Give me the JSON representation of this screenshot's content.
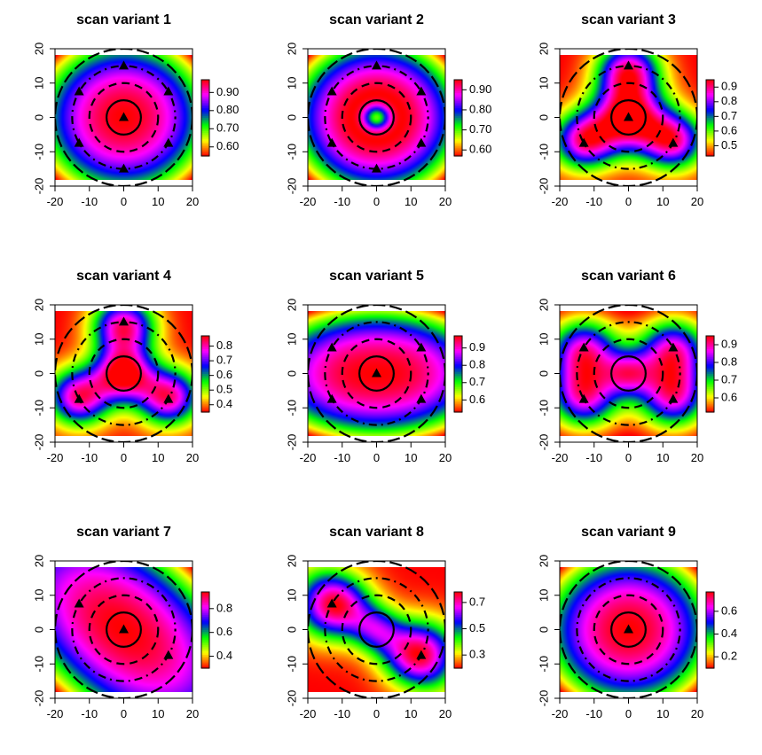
{
  "chart_data": [
    {
      "type": "heatmap",
      "title": "scan variant 1",
      "variant": 1,
      "xlim": [
        -20,
        20
      ],
      "ylim": [
        -20,
        20
      ],
      "x_ticks": [
        -20,
        -10,
        0,
        10,
        20
      ],
      "y_ticks": [
        -20,
        -10,
        0,
        10,
        20
      ],
      "zlim": [
        0.55,
        0.97
      ],
      "colorbar_ticks": [
        0.6,
        0.7,
        0.8,
        0.9
      ],
      "colorbar_labels": [
        "0.60",
        "0.70",
        "0.80",
        "0.90"
      ],
      "markers": [
        [
          0,
          0
        ],
        [
          0,
          15
        ],
        [
          12.99,
          7.5
        ],
        [
          12.99,
          -7.5
        ],
        [
          0,
          -15
        ],
        [
          -12.99,
          -7.5
        ],
        [
          -12.99,
          7.5
        ]
      ],
      "circles": [
        {
          "r": 5,
          "style": "solid"
        },
        {
          "r": 10,
          "style": "dashed"
        },
        {
          "r": 15,
          "style": "dotdash"
        },
        {
          "r": 20,
          "style": "longdash"
        }
      ]
    },
    {
      "type": "heatmap",
      "title": "scan variant 2",
      "variant": 2,
      "xlim": [
        -20,
        20
      ],
      "ylim": [
        -20,
        20
      ],
      "x_ticks": [
        -20,
        -10,
        0,
        10,
        20
      ],
      "y_ticks": [
        -20,
        -10,
        0,
        10,
        20
      ],
      "zlim": [
        0.57,
        0.95
      ],
      "colorbar_ticks": [
        0.6,
        0.7,
        0.8,
        0.9
      ],
      "colorbar_labels": [
        "0.60",
        "0.70",
        "0.80",
        "0.90"
      ],
      "markers": [
        [
          0,
          15
        ],
        [
          12.99,
          7.5
        ],
        [
          12.99,
          -7.5
        ],
        [
          0,
          -15
        ],
        [
          -12.99,
          -7.5
        ],
        [
          -12.99,
          7.5
        ]
      ],
      "circles": [
        {
          "r": 5,
          "style": "solid"
        },
        {
          "r": 10,
          "style": "dashed"
        },
        {
          "r": 15,
          "style": "dotdash"
        },
        {
          "r": 20,
          "style": "longdash"
        }
      ]
    },
    {
      "type": "heatmap",
      "title": "scan variant 3",
      "variant": 3,
      "xlim": [
        -20,
        20
      ],
      "ylim": [
        -20,
        20
      ],
      "x_ticks": [
        -20,
        -10,
        0,
        10,
        20
      ],
      "y_ticks": [
        -20,
        -10,
        0,
        10,
        20
      ],
      "zlim": [
        0.43,
        0.95
      ],
      "colorbar_ticks": [
        0.5,
        0.6,
        0.7,
        0.8,
        0.9
      ],
      "colorbar_labels": [
        "0.5",
        "0.6",
        "0.7",
        "0.8",
        "0.9"
      ],
      "markers": [
        [
          0,
          0
        ],
        [
          0,
          15
        ],
        [
          12.99,
          -7.5
        ],
        [
          -12.99,
          -7.5
        ]
      ],
      "circles": [
        {
          "r": 5,
          "style": "solid"
        },
        {
          "r": 10,
          "style": "dashed"
        },
        {
          "r": 15,
          "style": "dotdash"
        },
        {
          "r": 20,
          "style": "longdash"
        }
      ]
    },
    {
      "type": "heatmap",
      "title": "scan variant 4",
      "variant": 4,
      "xlim": [
        -20,
        20
      ],
      "ylim": [
        -20,
        20
      ],
      "x_ticks": [
        -20,
        -10,
        0,
        10,
        20
      ],
      "y_ticks": [
        -20,
        -10,
        0,
        10,
        20
      ],
      "zlim": [
        0.35,
        0.87
      ],
      "colorbar_ticks": [
        0.4,
        0.5,
        0.6,
        0.7,
        0.8
      ],
      "colorbar_labels": [
        "0.4",
        "0.5",
        "0.6",
        "0.7",
        "0.8"
      ],
      "markers": [
        [
          0,
          15
        ],
        [
          12.99,
          -7.5
        ],
        [
          -12.99,
          -7.5
        ]
      ],
      "circles": [
        {
          "r": 5,
          "style": "solid"
        },
        {
          "r": 10,
          "style": "dashed"
        },
        {
          "r": 15,
          "style": "dotdash"
        },
        {
          "r": 20,
          "style": "longdash"
        }
      ]
    },
    {
      "type": "heatmap",
      "title": "scan variant 5",
      "variant": 5,
      "xlim": [
        -20,
        20
      ],
      "ylim": [
        -20,
        20
      ],
      "x_ticks": [
        -20,
        -10,
        0,
        10,
        20
      ],
      "y_ticks": [
        -20,
        -10,
        0,
        10,
        20
      ],
      "zlim": [
        0.53,
        0.97
      ],
      "colorbar_ticks": [
        0.6,
        0.7,
        0.8,
        0.9
      ],
      "colorbar_labels": [
        "0.6",
        "0.7",
        "0.8",
        "0.9"
      ],
      "markers": [
        [
          0,
          0
        ],
        [
          12.99,
          7.5
        ],
        [
          12.99,
          -7.5
        ],
        [
          -12.99,
          -7.5
        ],
        [
          -12.99,
          7.5
        ]
      ],
      "circles": [
        {
          "r": 5,
          "style": "solid"
        },
        {
          "r": 10,
          "style": "dashed"
        },
        {
          "r": 15,
          "style": "dotdash"
        },
        {
          "r": 20,
          "style": "longdash"
        }
      ]
    },
    {
      "type": "heatmap",
      "title": "scan variant 6",
      "variant": 6,
      "xlim": [
        -20,
        20
      ],
      "ylim": [
        -20,
        20
      ],
      "x_ticks": [
        -20,
        -10,
        0,
        10,
        20
      ],
      "y_ticks": [
        -20,
        -10,
        0,
        10,
        20
      ],
      "zlim": [
        0.52,
        0.95
      ],
      "colorbar_ticks": [
        0.6,
        0.7,
        0.8,
        0.9
      ],
      "colorbar_labels": [
        "0.6",
        "0.7",
        "0.8",
        "0.9"
      ],
      "markers": [
        [
          12.99,
          7.5
        ],
        [
          12.99,
          -7.5
        ],
        [
          -12.99,
          -7.5
        ],
        [
          -12.99,
          7.5
        ]
      ],
      "circles": [
        {
          "r": 5,
          "style": "solid"
        },
        {
          "r": 10,
          "style": "dashed"
        },
        {
          "r": 15,
          "style": "dotdash"
        },
        {
          "r": 20,
          "style": "longdash"
        }
      ]
    },
    {
      "type": "heatmap",
      "title": "scan variant 7",
      "variant": 7,
      "xlim": [
        -20,
        20
      ],
      "ylim": [
        -20,
        20
      ],
      "x_ticks": [
        -20,
        -10,
        0,
        10,
        20
      ],
      "y_ticks": [
        -20,
        -10,
        0,
        10,
        20
      ],
      "zlim": [
        0.3,
        0.94
      ],
      "colorbar_ticks": [
        0.4,
        0.6,
        0.8
      ],
      "colorbar_labels": [
        "0.4",
        "0.6",
        "0.8"
      ],
      "markers": [
        [
          0,
          0
        ],
        [
          12.99,
          -7.5
        ],
        [
          -12.99,
          7.5
        ]
      ],
      "circles": [
        {
          "r": 5,
          "style": "solid"
        },
        {
          "r": 10,
          "style": "dashed"
        },
        {
          "r": 15,
          "style": "dotdash"
        },
        {
          "r": 20,
          "style": "longdash"
        }
      ]
    },
    {
      "type": "heatmap",
      "title": "scan variant 8",
      "variant": 8,
      "xlim": [
        -20,
        20
      ],
      "ylim": [
        -20,
        20
      ],
      "x_ticks": [
        -20,
        -10,
        0,
        10,
        20
      ],
      "y_ticks": [
        -20,
        -10,
        0,
        10,
        20
      ],
      "zlim": [
        0.2,
        0.78
      ],
      "colorbar_ticks": [
        0.3,
        0.5,
        0.7
      ],
      "colorbar_labels": [
        "0.3",
        "0.5",
        "0.7"
      ],
      "markers": [
        [
          12.99,
          -7.5
        ],
        [
          -12.99,
          7.5
        ]
      ],
      "circles": [
        {
          "r": 5,
          "style": "solid"
        },
        {
          "r": 10,
          "style": "dashed"
        },
        {
          "r": 15,
          "style": "dotdash"
        },
        {
          "r": 20,
          "style": "longdash"
        }
      ]
    },
    {
      "type": "heatmap",
      "title": "scan variant 9",
      "variant": 9,
      "xlim": [
        -20,
        20
      ],
      "ylim": [
        -20,
        20
      ],
      "x_ticks": [
        -20,
        -10,
        0,
        10,
        20
      ],
      "y_ticks": [
        -20,
        -10,
        0,
        10,
        20
      ],
      "zlim": [
        0.1,
        0.77
      ],
      "colorbar_ticks": [
        0.2,
        0.4,
        0.6
      ],
      "colorbar_labels": [
        "0.2",
        "0.4",
        "0.6"
      ],
      "markers": [
        [
          0,
          0
        ]
      ],
      "circles": [
        {
          "r": 5,
          "style": "solid"
        },
        {
          "r": 10,
          "style": "dashed"
        },
        {
          "r": 15,
          "style": "dotdash"
        },
        {
          "r": 20,
          "style": "longdash"
        }
      ]
    }
  ],
  "colormap": [
    "#ff0000",
    "#ffff00",
    "#00ff00",
    "#0000ff",
    "#ff00ff",
    "#ff0000"
  ]
}
